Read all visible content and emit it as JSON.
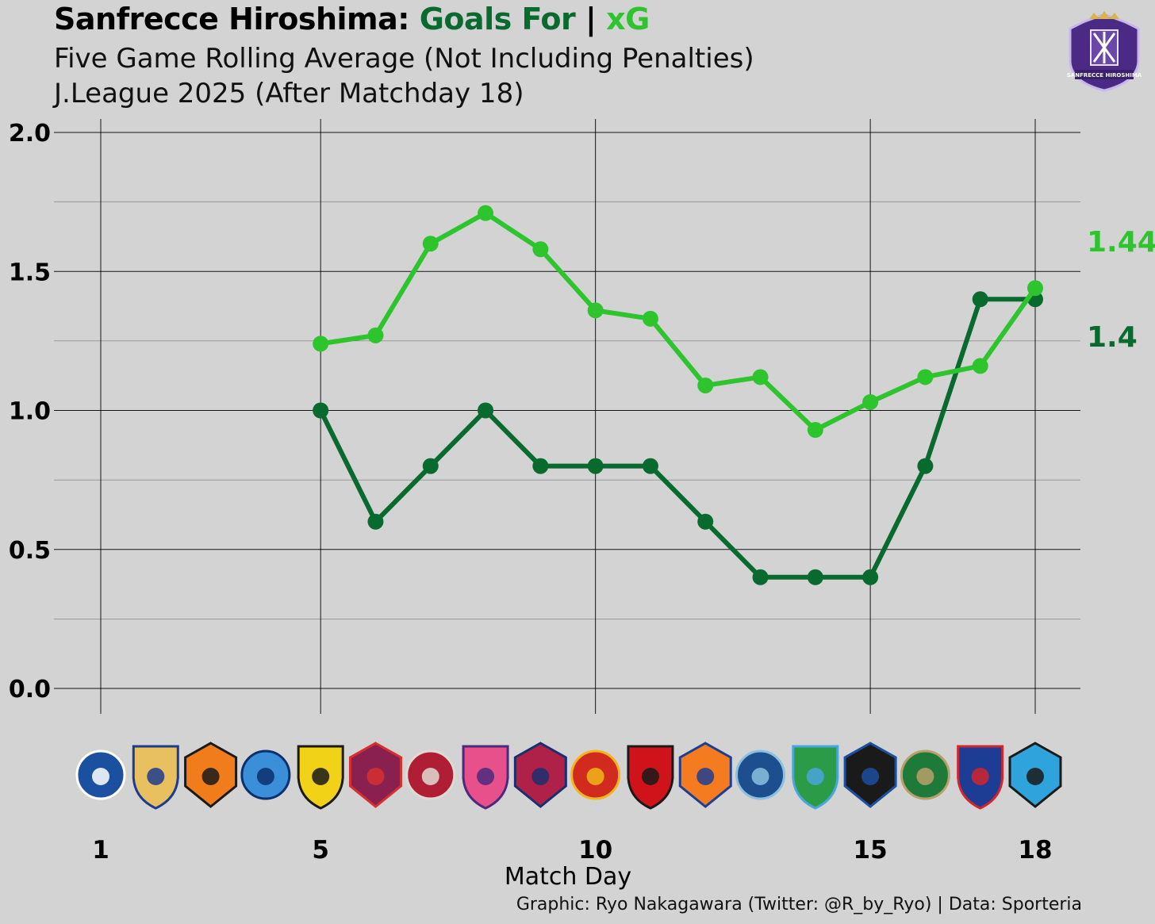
{
  "header": {
    "title_team": "Sanfrecce Hiroshima:",
    "title_goals_for": "Goals For",
    "title_sep": "|",
    "title_xg": "xG",
    "subtitle_line1": "Five Game Rolling Average (Not Including Penalties)",
    "subtitle_line2": "J.League 2025 (After Matchday 18)"
  },
  "credit": "Graphic: Ryo Nakagawara (Twitter: @R_by_Ryo) | Data: Sporteria",
  "colors": {
    "background": "#d3d3d3",
    "goals_for": "#086a2e",
    "xg": "#2ec42e",
    "grid": "#000000"
  },
  "logo": {
    "icon": "sanfrecce-hiroshima-crest-icon",
    "text": "SANFRECCE HIROSHIMA"
  },
  "chart_data": {
    "type": "line",
    "xlabel": "Match Day",
    "ylabel": "",
    "xlim": [
      1,
      18
    ],
    "ylim": [
      0,
      2
    ],
    "x_ticks": [
      1,
      5,
      10,
      15,
      18
    ],
    "y_ticks": [
      "0.0",
      "0.5",
      "1.0",
      "1.5",
      "2.0"
    ],
    "grid": true,
    "x": [
      5,
      6,
      7,
      8,
      9,
      10,
      11,
      12,
      13,
      14,
      15,
      16,
      17,
      18
    ],
    "series": [
      {
        "key": "goals_for",
        "values": [
          1.0,
          0.6,
          0.8,
          1.0,
          0.8,
          0.8,
          0.8,
          0.6,
          0.4,
          0.4,
          0.4,
          0.8,
          1.4,
          1.4
        ],
        "end_label": "1.4"
      },
      {
        "key": "xg",
        "values": [
          1.24,
          1.27,
          1.6,
          1.71,
          1.58,
          1.36,
          1.33,
          1.09,
          1.12,
          0.93,
          1.03,
          1.12,
          1.16,
          1.44
        ],
        "end_label": "1.44"
      }
    ],
    "opponents": [
      {
        "name": "Machida Zelvia",
        "icon": "machida-zelvia-crest-icon",
        "color": "#1b4fa0",
        "accent": "#ffffff"
      },
      {
        "name": "Yokohama F.Marinos",
        "icon": "yokohama-f-marinos-crest-icon",
        "color": "#e8c060",
        "accent": "#1d3c8f"
      },
      {
        "name": "Shimizu S-Pulse",
        "icon": "shimizu-s-pulse-crest-icon",
        "color": "#f07c1c",
        "accent": "#1a1a1a"
      },
      {
        "name": "Yokohama FC",
        "icon": "yokohama-fc-crest-icon",
        "color": "#3a8fd8",
        "accent": "#0d2f6e"
      },
      {
        "name": "Kashiwa Reysol",
        "icon": "kashiwa-reysol-crest-icon",
        "color": "#f2d216",
        "accent": "#1a1a1a"
      },
      {
        "name": "Kyoto Sanga",
        "icon": "kyoto-sanga-crest-icon",
        "color": "#8a2050",
        "accent": "#d6302e"
      },
      {
        "name": "Kashima Antlers",
        "icon": "kashima-antlers-crest-icon",
        "color": "#b01e36",
        "accent": "#e0dad4"
      },
      {
        "name": "Cerezo Osaka",
        "icon": "cerezo-osaka-crest-icon",
        "color": "#e7508a",
        "accent": "#4a2a7c"
      },
      {
        "name": "Fagiano Okayama",
        "icon": "fagiano-okayama-crest-icon",
        "color": "#b0214a",
        "accent": "#1a2f6e"
      },
      {
        "name": "Nagoya Grampus",
        "icon": "nagoya-grampus-crest-icon",
        "color": "#d12a1e",
        "accent": "#f2b51a"
      },
      {
        "name": "Urawa Red Diamonds",
        "icon": "urawa-reds-crest-icon",
        "color": "#d0121b",
        "accent": "#1a1a1a"
      },
      {
        "name": "Albirex Niigata",
        "icon": "albirex-niigata-crest-icon",
        "color": "#f47b20",
        "accent": "#1c3f94"
      },
      {
        "name": "Avispa Fukuoka",
        "icon": "avispa-fukuoka-crest-icon",
        "color": "#1d4f8f",
        "accent": "#8bc0e0"
      },
      {
        "name": "Shonan Bellmare",
        "icon": "shonan-bellmare-crest-icon",
        "color": "#2b9b48",
        "accent": "#4aa6dc"
      },
      {
        "name": "Gamba Osaka",
        "icon": "gamba-osaka-crest-icon",
        "color": "#1a1a1a",
        "accent": "#1d4fa0"
      },
      {
        "name": "Tokyo Verdy",
        "icon": "tokyo-verdy-crest-icon",
        "color": "#1f7a3a",
        "accent": "#b8a06a"
      },
      {
        "name": "FC Tokyo",
        "icon": "fc-tokyo-crest-icon",
        "color": "#1d3c94",
        "accent": "#d3252e"
      },
      {
        "name": "Kawasaki Frontale",
        "icon": "kawasaki-frontale-crest-icon",
        "color": "#2fa3dc",
        "accent": "#1a1a1a"
      }
    ]
  }
}
